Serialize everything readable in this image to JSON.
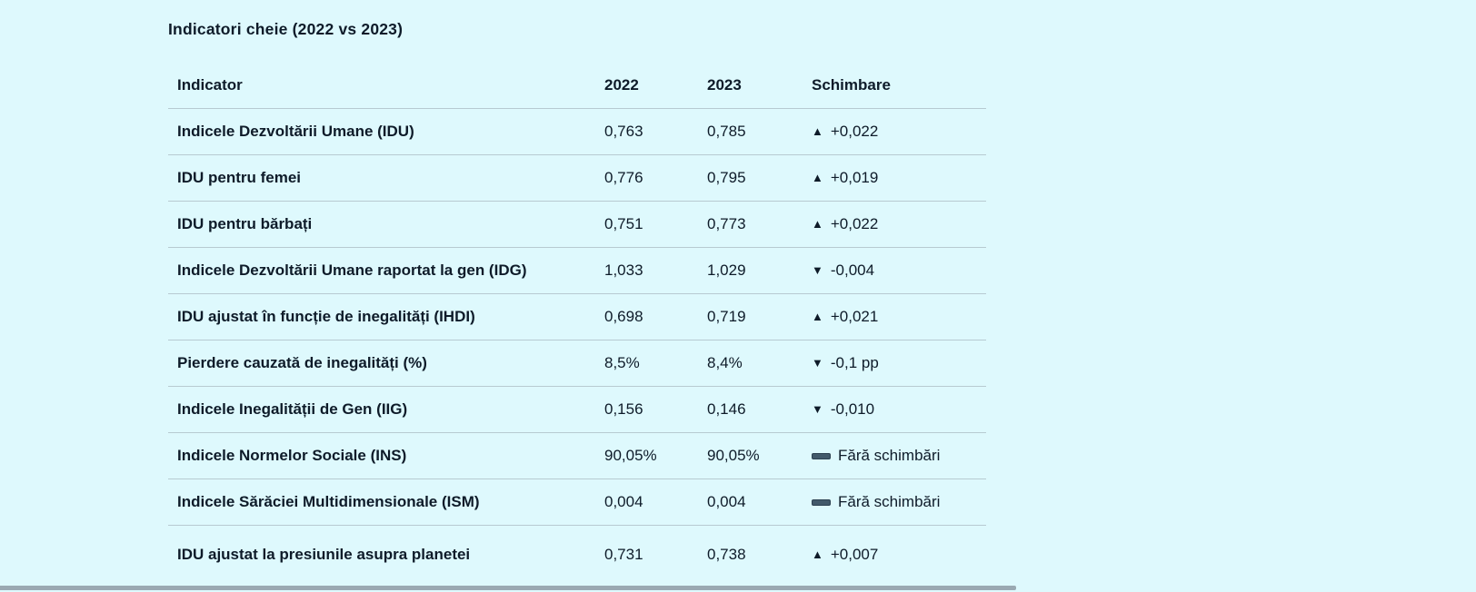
{
  "page": {
    "title": "Indicatori cheie (2022 vs 2023)"
  },
  "table": {
    "headers": {
      "indicator": "Indicator",
      "y2022": "2022",
      "y2023": "2023",
      "change": "Schimbare"
    },
    "rows": [
      {
        "indicator": "Indicele Dezvoltării Umane (IDU)",
        "v2022": "0,763",
        "v2023": "0,785",
        "direction": "up",
        "change": "+0,022"
      },
      {
        "indicator": "IDU pentru femei",
        "v2022": "0,776",
        "v2023": "0,795",
        "direction": "up",
        "change": "+0,019"
      },
      {
        "indicator": "IDU pentru bărbați",
        "v2022": "0,751",
        "v2023": "0,773",
        "direction": "up",
        "change": "+0,022"
      },
      {
        "indicator": "Indicele Dezvoltării Umane raportat la gen (IDG)",
        "v2022": "1,033",
        "v2023": "1,029",
        "direction": "down",
        "change": "-0,004"
      },
      {
        "indicator": "IDU ajustat în funcție de inegalități (IHDI)",
        "v2022": "0,698",
        "v2023": "0,719",
        "direction": "up",
        "change": "+0,021"
      },
      {
        "indicator": "Pierdere cauzată de inegalități (%)",
        "v2022": "8,5%",
        "v2023": "8,4%",
        "direction": "down",
        "change": "-0,1 pp"
      },
      {
        "indicator": "Indicele Inegalității de Gen (IIG)",
        "v2022": "0,156",
        "v2023": "0,146",
        "direction": "down",
        "change": "-0,010"
      },
      {
        "indicator": "Indicele Normelor Sociale (INS)",
        "v2022": "90,05%",
        "v2023": "90,05%",
        "direction": "none",
        "change": "Fără schimbări"
      },
      {
        "indicator": "Indicele Sărăciei Multidimensionale (ISM)",
        "v2022": "0,004",
        "v2023": "0,004",
        "direction": "none",
        "change": "Fără schimbări"
      },
      {
        "indicator": "IDU ajustat la presiunile asupra planetei",
        "v2022": "0,731",
        "v2023": "0,738",
        "direction": "up",
        "change": "+0,007"
      }
    ]
  },
  "icons": {
    "up": "▲",
    "down": "▼",
    "none": "no-change-dash"
  },
  "colors": {
    "background": "#def9fd",
    "text": "#0e1b29",
    "divider": "#b7cad1",
    "bottom_divider": "#9aa9b2",
    "no_change_dash": "#42596a"
  }
}
